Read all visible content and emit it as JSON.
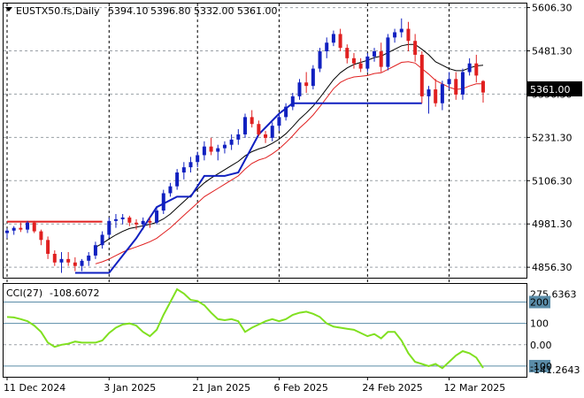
{
  "chart_data": [
    {
      "type": "candlestick",
      "title": "EUSTX50.fs,Daily",
      "ohlc_header": [
        "5394.10",
        "5396.80",
        "5332.00",
        "5361.00"
      ],
      "last_price_label": "5361.00",
      "y_ticks": [
        "5606.30",
        "5481.30",
        "5356.30",
        "5231.30",
        "5106.30",
        "4981.30",
        "4856.30"
      ],
      "ylim": [
        4826,
        5618
      ],
      "x_tick_labels": [
        "11 Dec 2024",
        "3 Jan 2025",
        "21 Jan 2025",
        "6 Feb 2025",
        "24 Feb 2025",
        "12 Mar 2025"
      ],
      "x_tick_index": [
        0,
        15,
        28,
        40,
        53,
        65
      ],
      "series": [
        {
          "kind": "ohlc",
          "candles": [
            [
              4955,
              4968,
              4940,
              4962
            ],
            [
              4962,
              4975,
              4950,
              4970
            ],
            [
              4970,
              4985,
              4958,
              4965
            ],
            [
              4965,
              4990,
              4955,
              4985
            ],
            [
              4985,
              4990,
              4955,
              4960
            ],
            [
              4960,
              4965,
              4920,
              4935
            ],
            [
              4935,
              4945,
              4880,
              4895
            ],
            [
              4895,
              4905,
              4860,
              4870
            ],
            [
              4870,
              4900,
              4840,
              4880
            ],
            [
              4880,
              4900,
              4860,
              4870
            ],
            [
              4870,
              4885,
              4845,
              4860
            ],
            [
              4860,
              4880,
              4845,
              4875
            ],
            [
              4875,
              4900,
              4860,
              4890
            ],
            [
              4890,
              4930,
              4880,
              4920
            ],
            [
              4920,
              4960,
              4910,
              4950
            ],
            [
              4950,
              5000,
              4940,
              4990
            ],
            [
              4990,
              5010,
              4970,
              4995
            ],
            [
              4995,
              5010,
              4980,
              5000
            ],
            [
              5000,
              5005,
              4975,
              4985
            ],
            [
              4985,
              4995,
              4965,
              4980
            ],
            [
              4980,
              5000,
              4965,
              4990
            ],
            [
              4990,
              5000,
              4970,
              4985
            ],
            [
              4985,
              5030,
              4980,
              5020
            ],
            [
              5020,
              5080,
              5010,
              5070
            ],
            [
              5070,
              5100,
              5060,
              5090
            ],
            [
              5090,
              5140,
              5080,
              5130
            ],
            [
              5130,
              5160,
              5110,
              5145
            ],
            [
              5145,
              5175,
              5130,
              5160
            ],
            [
              5160,
              5190,
              5145,
              5180
            ],
            [
              5180,
              5220,
              5165,
              5205
            ],
            [
              5205,
              5230,
              5180,
              5190
            ],
            [
              5190,
              5210,
              5165,
              5200
            ],
            [
              5200,
              5220,
              5185,
              5210
            ],
            [
              5210,
              5240,
              5195,
              5225
            ],
            [
              5225,
              5255,
              5210,
              5240
            ],
            [
              5240,
              5300,
              5230,
              5290
            ],
            [
              5290,
              5310,
              5260,
              5270
            ],
            [
              5270,
              5280,
              5235,
              5240
            ],
            [
              5240,
              5250,
              5215,
              5230
            ],
            [
              5230,
              5275,
              5220,
              5265
            ],
            [
              5265,
              5300,
              5250,
              5290
            ],
            [
              5290,
              5330,
              5280,
              5320
            ],
            [
              5320,
              5360,
              5310,
              5350
            ],
            [
              5350,
              5400,
              5340,
              5390
            ],
            [
              5390,
              5420,
              5360,
              5380
            ],
            [
              5380,
              5440,
              5370,
              5430
            ],
            [
              5430,
              5490,
              5420,
              5480
            ],
            [
              5480,
              5520,
              5460,
              5505
            ],
            [
              5505,
              5540,
              5495,
              5530
            ],
            [
              5530,
              5545,
              5480,
              5490
            ],
            [
              5490,
              5500,
              5445,
              5460
            ],
            [
              5460,
              5475,
              5430,
              5445
            ],
            [
              5445,
              5460,
              5420,
              5430
            ],
            [
              5430,
              5475,
              5420,
              5465
            ],
            [
              5465,
              5490,
              5450,
              5480
            ],
            [
              5480,
              5505,
              5420,
              5435
            ],
            [
              5435,
              5530,
              5425,
              5520
            ],
            [
              5520,
              5545,
              5505,
              5535
            ],
            [
              5535,
              5575,
              5520,
              5545
            ],
            [
              5545,
              5565,
              5480,
              5510
            ],
            [
              5510,
              5530,
              5450,
              5470
            ],
            [
              5470,
              5480,
              5330,
              5350
            ],
            [
              5350,
              5380,
              5300,
              5370
            ],
            [
              5370,
              5400,
              5320,
              5330
            ],
            [
              5330,
              5395,
              5310,
              5385
            ],
            [
              5385,
              5420,
              5370,
              5400
            ],
            [
              5400,
              5420,
              5340,
              5355
            ],
            [
              5355,
              5430,
              5340,
              5420
            ],
            [
              5420,
              5460,
              5410,
              5445
            ],
            [
              5445,
              5470,
              5390,
              5410
            ],
            [
              5394.1,
              5396.8,
              5332,
              5361
            ]
          ]
        },
        {
          "name": "",
          "kind": "line",
          "color": "#000000",
          "values": [
            null,
            null,
            null,
            null,
            null,
            null,
            null,
            null,
            null,
            null,
            null,
            null,
            null,
            4914,
            4925,
            4938,
            4950,
            4960,
            4968,
            4972,
            4976,
            4980,
            4986,
            4996,
            5010,
            5028,
            5046,
            5064,
            5082,
            5100,
            5114,
            5126,
            5138,
            5150,
            5162,
            5178,
            5190,
            5198,
            5204,
            5214,
            5226,
            5242,
            5262,
            5284,
            5302,
            5322,
            5346,
            5372,
            5398,
            5418,
            5432,
            5442,
            5448,
            5454,
            5462,
            5466,
            5476,
            5486,
            5496,
            5500,
            5500,
            5486,
            5470,
            5450,
            5440,
            5430,
            5424,
            5424,
            5432,
            5438,
            5440
          ]
        },
        {
          "name": "",
          "kind": "line",
          "color": "#e02020",
          "values": [
            null,
            null,
            null,
            null,
            null,
            null,
            null,
            null,
            null,
            null,
            null,
            null,
            null,
            4866,
            4872,
            4880,
            4890,
            4900,
            4908,
            4915,
            4922,
            4930,
            4940,
            4955,
            4970,
            4988,
            5006,
            5024,
            5042,
            5060,
            5072,
            5084,
            5096,
            5108,
            5120,
            5140,
            5156,
            5166,
            5172,
            5184,
            5198,
            5216,
            5236,
            5258,
            5276,
            5296,
            5320,
            5346,
            5372,
            5390,
            5400,
            5406,
            5408,
            5410,
            5416,
            5418,
            5428,
            5438,
            5448,
            5450,
            5446,
            5430,
            5414,
            5396,
            5386,
            5376,
            5370,
            5372,
            5380,
            5386,
            5386
          ]
        },
        {
          "name": "",
          "kind": "step",
          "color": "#e02020",
          "values": [
            4988,
            4988,
            4988,
            4988,
            4988,
            4988,
            4988,
            4988,
            4988,
            4988,
            4988,
            4988,
            4988,
            4988,
            4988,
            null,
            null,
            null,
            null,
            null,
            null,
            null,
            null,
            null,
            null,
            null,
            null,
            null,
            null,
            null,
            null,
            null,
            null,
            null,
            null,
            null,
            null,
            null,
            null,
            null,
            null,
            null,
            null,
            null,
            null,
            null,
            null,
            null,
            null,
            null,
            null,
            null,
            null,
            null,
            null,
            null,
            null,
            null,
            null,
            null,
            null,
            null,
            null,
            null,
            null,
            null,
            null,
            null,
            null,
            null,
            null
          ]
        },
        {
          "name": "",
          "kind": "step",
          "color": "#1020c0",
          "values": [
            null,
            null,
            null,
            null,
            null,
            null,
            null,
            null,
            null,
            null,
            null,
            null,
            null,
            null,
            null,
            null,
            null,
            null,
            null,
            null,
            null,
            null,
            null,
            null,
            null,
            null,
            null,
            null,
            null,
            null,
            null,
            null,
            null,
            null,
            null,
            null,
            null,
            null,
            null,
            null,
            null,
            null,
            null,
            null,
            null,
            null,
            null,
            null,
            null,
            null,
            null,
            null,
            null,
            null,
            null,
            null,
            null,
            null,
            null,
            null,
            null,
            null,
            null,
            null,
            null,
            null,
            null,
            null,
            null,
            null,
            null
          ]
        }
      ],
      "blue_stop_path": [
        [
          10,
          4840
        ],
        [
          14,
          4840
        ],
        [
          15,
          4840
        ],
        [
          19,
          4940
        ],
        [
          22,
          5030
        ],
        [
          25,
          5060
        ],
        [
          27,
          5060
        ],
        [
          29,
          5120
        ],
        [
          32,
          5120
        ],
        [
          34,
          5130
        ],
        [
          37,
          5240
        ],
        [
          40,
          5300
        ],
        [
          42,
          5330
        ],
        [
          47,
          5330
        ],
        [
          55,
          5330
        ],
        [
          61,
          5330
        ]
      ],
      "grid": true
    },
    {
      "type": "line",
      "title": "CCI(27)",
      "current_value_label": "-108.6072",
      "y_ticks": [
        "275.6363",
        "200",
        "100",
        "0.00",
        "-100",
        "-141.2643"
      ],
      "levels": [
        200,
        100,
        -100
      ],
      "ylim": [
        -150,
        285
      ],
      "series": [
        {
          "name": "",
          "color": "#80e020",
          "values": [
            130,
            128,
            120,
            110,
            90,
            60,
            10,
            -10,
            0,
            5,
            15,
            10,
            10,
            10,
            20,
            55,
            80,
            95,
            100,
            90,
            60,
            40,
            70,
            140,
            200,
            260,
            240,
            210,
            205,
            185,
            150,
            120,
            115,
            120,
            110,
            60,
            80,
            95,
            110,
            120,
            110,
            120,
            140,
            150,
            155,
            145,
            130,
            100,
            85,
            80,
            75,
            70,
            55,
            40,
            50,
            30,
            60,
            60,
            20,
            -40,
            -80,
            -90,
            -100,
            -90,
            -110,
            -80,
            -50,
            -30,
            -40,
            -60,
            -108.6072
          ]
        }
      ],
      "grid": false
    }
  ]
}
